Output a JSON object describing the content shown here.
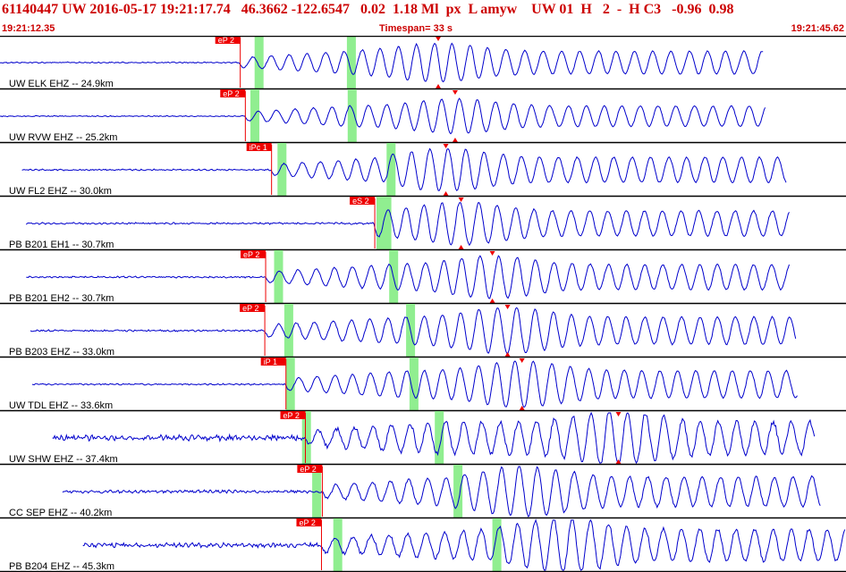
{
  "header": {
    "title": "61140447 UW 2016-05-17 19:21:17.74   46.3662 -122.6547   0.02  1.18 Ml  px  L amyw    UW 01  H   2  -  H C3   -0.96  0.98",
    "start_time": "19:21:12.35",
    "timespan": "Timespan=  33 s",
    "end_time": "19:21:45.62"
  },
  "colors": {
    "trace": "#0000cc",
    "pick": "#ee0000",
    "window": "#90ee90",
    "header_text": "#cc0000"
  },
  "traces": [
    {
      "label": "UW ELK EHZ -- 24.9km",
      "pick_label": "eP 2",
      "pick_frac": 0.284,
      "green": [
        0.301,
        0.41
      ],
      "start": 0.0,
      "end": 0.903,
      "noise": 0.1,
      "amp": 0.5,
      "onset": 0.41,
      "s_frac": 0.518,
      "marker_top": 0.518,
      "marker_bot": 0.518
    },
    {
      "label": "UW RVW EHZ -- 25.2km",
      "pick_label": "eP 2",
      "pick_frac": 0.29,
      "green": [
        0.296,
        0.411
      ],
      "start": 0.0,
      "end": 0.905,
      "noise": 0.08,
      "amp": 0.45,
      "onset": 0.411,
      "s_frac": 0.538,
      "marker_top": 0.538,
      "marker_bot": 0.538
    },
    {
      "label": "UW FL2 EHZ -- 30.0km",
      "pick_label": "iPc 1",
      "pick_frac": 0.321,
      "green": [
        0.328,
        0.457
      ],
      "start": 0.026,
      "end": 0.93,
      "noise": 0.12,
      "amp": 0.55,
      "onset": 0.457,
      "s_frac": 0.527,
      "marker_top": 0.527,
      "marker_bot": 0.527
    },
    {
      "label": "PB B201 EH1 -- 30.7km",
      "pick_label": "eS 2",
      "pick_frac": 0.443,
      "green": [
        0.445,
        0.452
      ],
      "start": 0.031,
      "end": 0.933,
      "noise": 0.15,
      "amp": 0.55,
      "onset": 0.443,
      "s_frac": 0.545,
      "marker_top": 0.545,
      "marker_bot": 0.545
    },
    {
      "label": "PB B201 EH2 -- 30.7km",
      "pick_label": "eP 2",
      "pick_frac": 0.314,
      "green": [
        0.324,
        0.46
      ],
      "start": 0.031,
      "end": 0.933,
      "noise": 0.13,
      "amp": 0.55,
      "onset": 0.46,
      "s_frac": 0.582,
      "marker_top": 0.582,
      "marker_bot": 0.582
    },
    {
      "label": "PB B203 EHZ -- 33.0km",
      "pick_label": "eP 2",
      "pick_frac": 0.313,
      "green": [
        0.336,
        0.48
      ],
      "start": 0.036,
      "end": 0.941,
      "noise": 0.14,
      "amp": 0.6,
      "onset": 0.48,
      "s_frac": 0.6,
      "marker_top": 0.6,
      "marker_bot": 0.6
    },
    {
      "label": "UW TDL EHZ -- 33.6km",
      "pick_label": "iP 1",
      "pick_frac": 0.338,
      "green": [
        0.338,
        0.484
      ],
      "start": 0.038,
      "end": 0.943,
      "noise": 0.12,
      "amp": 0.6,
      "onset": 0.484,
      "s_frac": 0.617,
      "marker_top": 0.617,
      "marker_bot": 0.617
    },
    {
      "label": "UW SHW EHZ -- 37.4km",
      "pick_label": "eP 2",
      "pick_frac": 0.361,
      "green": [
        0.357,
        0.514
      ],
      "start": 0.062,
      "end": 0.963,
      "noise": 0.45,
      "amp": 0.7,
      "onset": 0.514,
      "s_frac": 0.731,
      "marker_top": 0.731,
      "marker_bot": 0.731
    },
    {
      "label": "CC SEP EHZ -- 40.2km",
      "pick_label": "eP 2",
      "pick_frac": 0.381,
      "green": [
        0.369,
        0.536
      ],
      "start": 0.074,
      "end": 0.97,
      "noise": 0.25,
      "amp": 0.65,
      "onset": 0.536,
      "s_frac": -1,
      "marker_top": -1,
      "marker_bot": -1
    },
    {
      "label": "PB B204 EHZ -- 45.3km",
      "pick_label": "eP 2",
      "pick_frac": 0.38,
      "green": [
        0.394,
        0.582
      ],
      "start": 0.098,
      "end": 1.0,
      "noise": 0.35,
      "amp": 0.7,
      "onset": 0.582,
      "s_frac": -1,
      "marker_top": -1,
      "marker_bot": -1
    }
  ]
}
